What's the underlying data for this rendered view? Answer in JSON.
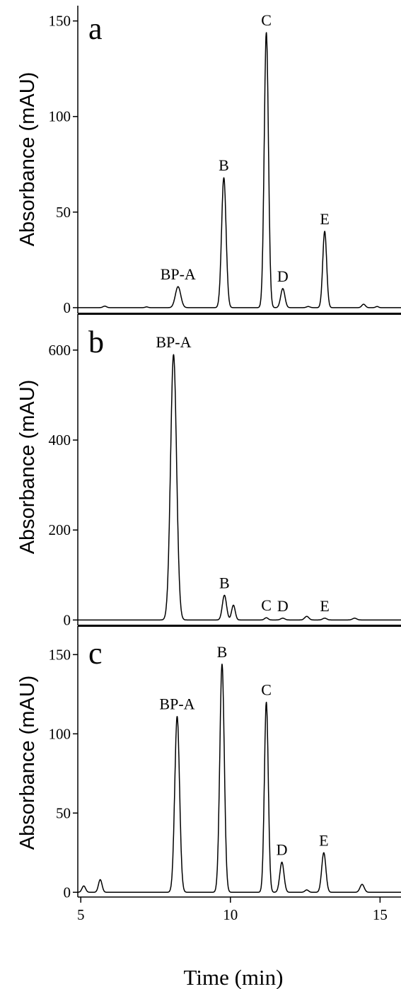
{
  "figure": {
    "xlabel": "Time (min)",
    "xticks": [
      "5",
      "10",
      "15"
    ]
  },
  "chart_data": [
    {
      "type": "line",
      "panel": "a",
      "xlabel": "Time (min)",
      "ylabel": "Absorbance (mAU)",
      "xlim": [
        4.9,
        15.7
      ],
      "ylim": [
        -3,
        158
      ],
      "yticks": [
        0,
        50,
        100,
        150
      ],
      "baseline_blips": [
        [
          5.8,
          0.8,
          0.06
        ],
        [
          7.2,
          0.4,
          0.05
        ],
        [
          12.6,
          0.6,
          0.06
        ],
        [
          14.45,
          1.8,
          0.06
        ],
        [
          14.9,
          0.6,
          0.05
        ]
      ],
      "peaks": [
        {
          "label": "BP-A",
          "x": 8.25,
          "y": 11,
          "width": 0.09
        },
        {
          "label": "B",
          "x": 9.78,
          "y": 68,
          "width": 0.075
        },
        {
          "label": "C",
          "x": 11.2,
          "y": 144,
          "width": 0.07
        },
        {
          "label": "D",
          "x": 11.75,
          "y": 10,
          "width": 0.07
        },
        {
          "label": "E",
          "x": 13.15,
          "y": 40,
          "width": 0.065
        }
      ]
    },
    {
      "type": "line",
      "panel": "b",
      "xlabel": "Time (min)",
      "ylabel": "Absorbance (mAU)",
      "xlim": [
        4.9,
        15.7
      ],
      "ylim": [
        -12,
        680
      ],
      "yticks": [
        0,
        200,
        400,
        600
      ],
      "baseline_blips": [
        [
          12.55,
          8,
          0.07
        ],
        [
          14.15,
          4,
          0.07
        ]
      ],
      "peaks": [
        {
          "label": "BP-A",
          "x": 8.1,
          "y": 590,
          "width": 0.1
        },
        {
          "label": "B",
          "x": 9.8,
          "y": 55,
          "width": 0.07
        },
        {
          "label": "",
          "x": 10.1,
          "y": 33,
          "width": 0.06
        },
        {
          "label": "C",
          "x": 11.2,
          "y": 5,
          "width": 0.06
        },
        {
          "label": "D",
          "x": 11.75,
          "y": 4,
          "width": 0.07
        },
        {
          "label": "E",
          "x": 13.15,
          "y": 4,
          "width": 0.07
        }
      ]
    },
    {
      "type": "line",
      "panel": "c",
      "xlabel": "Time (min)",
      "ylabel": "Absorbance (mAU)",
      "xlim": [
        4.9,
        15.7
      ],
      "ylim": [
        -3,
        168
      ],
      "yticks": [
        0,
        50,
        100,
        150
      ],
      "baseline_blips": [
        [
          5.1,
          4,
          0.06
        ],
        [
          5.65,
          8,
          0.06
        ],
        [
          12.55,
          1.5,
          0.06
        ],
        [
          14.4,
          5,
          0.07
        ]
      ],
      "peaks": [
        {
          "label": "BP-A",
          "x": 8.22,
          "y": 111,
          "width": 0.08
        },
        {
          "label": "B",
          "x": 9.72,
          "y": 144,
          "width": 0.075
        },
        {
          "label": "C",
          "x": 11.2,
          "y": 120,
          "width": 0.065
        },
        {
          "label": "D",
          "x": 11.72,
          "y": 19,
          "width": 0.07
        },
        {
          "label": "E",
          "x": 13.12,
          "y": 25,
          "width": 0.07
        }
      ]
    }
  ]
}
